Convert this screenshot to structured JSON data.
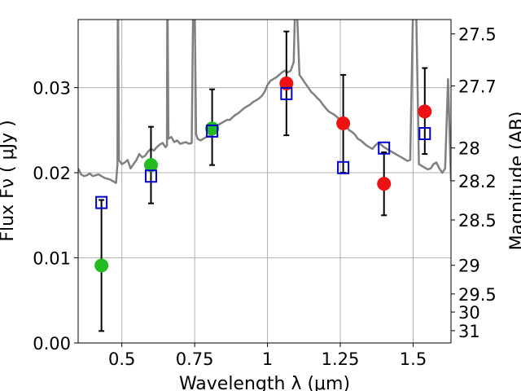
{
  "chart_data": {
    "type": "scatter",
    "xlabel": "Wavelength  λ (μm)",
    "ylabel": "Flux  Fν  ( μJy )",
    "y2label": "Magnitude (AB)",
    "xlim": [
      0.35,
      1.63
    ],
    "ylim": [
      0.0,
      0.038
    ],
    "x_ticks": [
      0.5,
      0.75,
      1.0,
      1.25,
      1.5
    ],
    "x_tick_labels": [
      "0.5",
      "0.75",
      "1",
      "1.25",
      "1.5"
    ],
    "y_ticks": [
      0.0,
      0.01,
      0.02,
      0.03
    ],
    "y_tick_labels": [
      "0.00",
      "0.01",
      "0.02",
      "0.03"
    ],
    "mag_ticks": [
      27.5,
      27.7,
      28,
      28.2,
      28.5,
      29,
      29.5,
      30,
      31
    ],
    "mag_tick_labels": [
      "27.5",
      "27.7",
      "28",
      "28.2",
      "28.5",
      "29",
      "29.5",
      "30",
      "31"
    ],
    "grid": true,
    "colors": {
      "model": "#808080",
      "green": "#22bb22",
      "red": "#ee1111",
      "box": "#0000cc",
      "errorbar": "#000000"
    },
    "model_spectrum": {
      "x": [
        0.35,
        0.36,
        0.37,
        0.38,
        0.39,
        0.4,
        0.41,
        0.42,
        0.43,
        0.44,
        0.45,
        0.46,
        0.47,
        0.48,
        0.485,
        0.486,
        0.487,
        0.49,
        0.5,
        0.51,
        0.52,
        0.53,
        0.54,
        0.55,
        0.56,
        0.57,
        0.58,
        0.59,
        0.6,
        0.61,
        0.62,
        0.63,
        0.64,
        0.65,
        0.655,
        0.656,
        0.657,
        0.66,
        0.67,
        0.68,
        0.69,
        0.7,
        0.71,
        0.72,
        0.73,
        0.74,
        0.745,
        0.75,
        0.755,
        0.76,
        0.77,
        0.78,
        0.79,
        0.8,
        0.81,
        0.82,
        0.83,
        0.84,
        0.85,
        0.86,
        0.87,
        0.88,
        0.89,
        0.9,
        0.91,
        0.92,
        0.93,
        0.94,
        0.95,
        0.96,
        0.97,
        0.98,
        0.99,
        1.0,
        1.01,
        1.02,
        1.03,
        1.04,
        1.05,
        1.06,
        1.07,
        1.08,
        1.09,
        1.095,
        1.1,
        1.11,
        1.12,
        1.13,
        1.14,
        1.15,
        1.16,
        1.17,
        1.18,
        1.19,
        1.2,
        1.21,
        1.22,
        1.23,
        1.24,
        1.25,
        1.26,
        1.27,
        1.28,
        1.29,
        1.3,
        1.31,
        1.32,
        1.33,
        1.34,
        1.35,
        1.36,
        1.37,
        1.38,
        1.39,
        1.4,
        1.41,
        1.42,
        1.43,
        1.44,
        1.45,
        1.46,
        1.47,
        1.48,
        1.49,
        1.5,
        1.51,
        1.52,
        1.53,
        1.54,
        1.55,
        1.56,
        1.57,
        1.58,
        1.59,
        1.6,
        1.61,
        1.62,
        1.63
      ],
      "y": [
        0.0205,
        0.0198,
        0.0196,
        0.0197,
        0.0199,
        0.0196,
        0.0197,
        0.0198,
        0.0196,
        0.0194,
        0.0193,
        0.0192,
        0.019,
        0.0188,
        0.021,
        0.0395,
        0.04,
        0.0215,
        0.021,
        0.0212,
        0.0215,
        0.0205,
        0.021,
        0.0215,
        0.0222,
        0.0218,
        0.022,
        0.0225,
        0.0228,
        0.0226,
        0.023,
        0.0233,
        0.0235,
        0.023,
        0.0232,
        0.04,
        0.04,
        0.024,
        0.0242,
        0.0236,
        0.0238,
        0.0234,
        0.0235,
        0.0236,
        0.0234,
        0.0235,
        0.04,
        0.04,
        0.0245,
        0.024,
        0.0238,
        0.024,
        0.0242,
        0.0243,
        0.0248,
        0.0252,
        0.0256,
        0.0258,
        0.026,
        0.0262,
        0.0262,
        0.0265,
        0.0268,
        0.027,
        0.0273,
        0.0276,
        0.0278,
        0.028,
        0.0283,
        0.0285,
        0.0287,
        0.029,
        0.0295,
        0.0303,
        0.0308,
        0.031,
        0.0312,
        0.0315,
        0.0318,
        0.032,
        0.0318,
        0.032,
        0.033,
        0.04,
        0.04,
        0.0315,
        0.031,
        0.0305,
        0.03,
        0.0295,
        0.0292,
        0.0288,
        0.0285,
        0.028,
        0.0276,
        0.0272,
        0.027,
        0.0268,
        0.0265,
        0.0262,
        0.0258,
        0.0255,
        0.025,
        0.0248,
        0.0245,
        0.024,
        0.0238,
        0.0235,
        0.0232,
        0.023,
        0.0228,
        0.0232,
        0.0235,
        0.0233,
        0.023,
        0.0228,
        0.0226,
        0.0224,
        0.0222,
        0.022,
        0.0218,
        0.0216,
        0.0214,
        0.0215,
        0.04,
        0.04,
        0.021,
        0.0208,
        0.0206,
        0.0204,
        0.0205,
        0.021,
        0.0212,
        0.0205,
        0.02,
        0.0205,
        0.031,
        0.019
      ]
    },
    "series": [
      {
        "name": "",
        "marker": "circle",
        "color_key": "green",
        "x": [
          0.43,
          0.6,
          0.81
        ],
        "y": [
          0.0091,
          0.0209,
          0.0252
        ],
        "yerr_low": [
          0.0077,
          0.0045,
          0.0043
        ],
        "yerr_high": [
          0.0077,
          0.0045,
          0.0046
        ]
      },
      {
        "name": "",
        "marker": "circle",
        "color_key": "red",
        "x": [
          1.065,
          1.26,
          1.4,
          1.54
        ],
        "y": [
          0.0305,
          0.0258,
          0.0187,
          0.0272
        ],
        "yerr_low": [
          0.0061,
          0.0058,
          0.0037,
          0.005
        ],
        "yerr_high": [
          0.0061,
          0.0057,
          0.0037,
          0.0051
        ]
      },
      {
        "name": "",
        "marker": "open-square",
        "color_key": "box",
        "x": [
          0.43,
          0.6,
          0.81,
          1.065,
          1.26,
          1.4,
          1.54
        ],
        "y": [
          0.0165,
          0.0196,
          0.0249,
          0.0293,
          0.0206,
          0.0229,
          0.0246
        ]
      }
    ]
  }
}
